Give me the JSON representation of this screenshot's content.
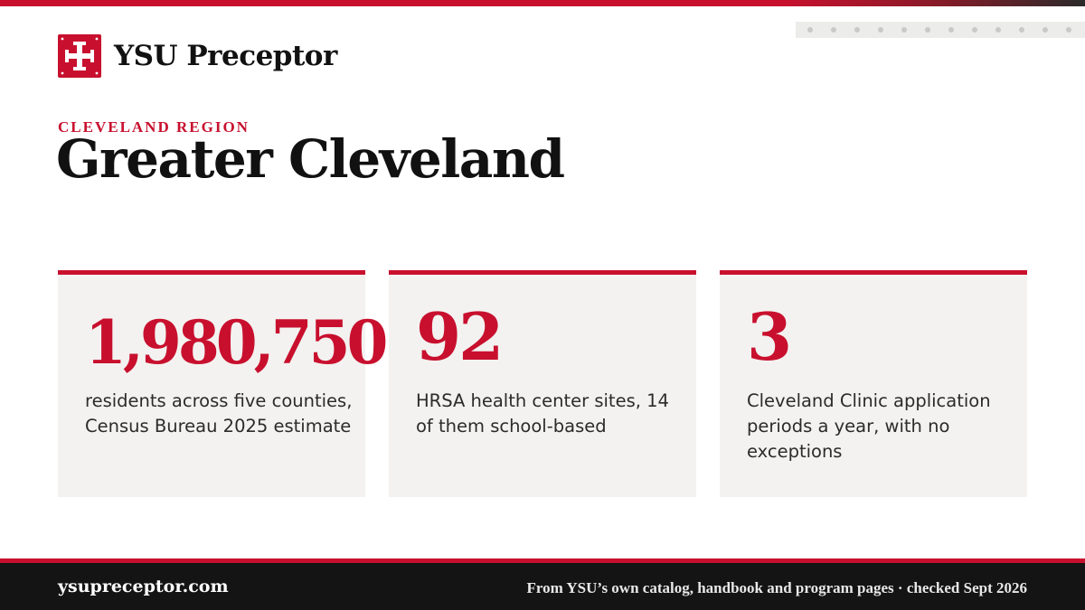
{
  "brand": {
    "name": "YSU Preceptor",
    "logo_icon": "cross-potent-icon",
    "accent": "#c8102e"
  },
  "header": {
    "region_label": "CLEVELAND REGION",
    "title": "Greater Cleveland"
  },
  "stats": [
    {
      "value": "1,980,750",
      "description": "residents across five counties, Census Bureau 2025 estimate"
    },
    {
      "value": "92",
      "description": "HRSA health center sites, 14 of them school-based"
    },
    {
      "value": "3",
      "description": "Cleveland Clinic application periods a year, with no exceptions"
    }
  ],
  "footer": {
    "site": "ysupreceptor.com",
    "note": "From YSU’s own catalog, handbook and program pages · checked Sept 2026"
  }
}
